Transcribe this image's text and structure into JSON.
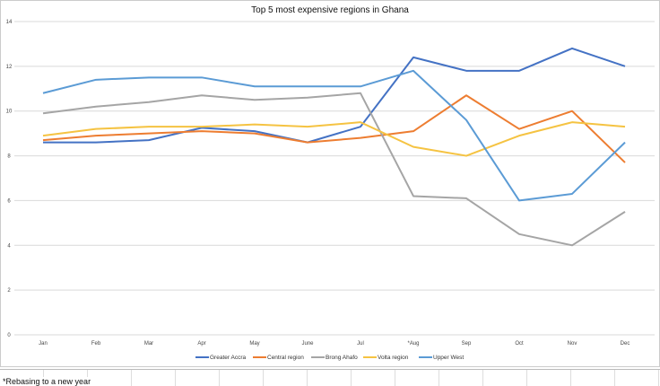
{
  "chart_data": {
    "type": "line",
    "title": "Top 5 most expensive regions in Ghana",
    "xlabel": "",
    "ylabel": "",
    "categories": [
      "Jan",
      "Feb",
      "Mar",
      "Apr",
      "May",
      "June",
      "Jul",
      "*Aug",
      "Sep",
      "Oct",
      "Nov",
      "Dec"
    ],
    "ylim": [
      0,
      14
    ],
    "yticks": [
      0,
      2,
      4,
      6,
      8,
      10,
      12,
      14
    ],
    "grid": true,
    "legend": "bottom",
    "series": [
      {
        "name": "Greater Accra",
        "color": "#4472C4",
        "values": [
          8.6,
          8.6,
          8.7,
          9.25,
          9.1,
          8.6,
          9.3,
          12.4,
          11.8,
          11.8,
          12.8,
          12.0
        ]
      },
      {
        "name": "Central region",
        "color": "#ED7D31",
        "values": [
          8.7,
          8.9,
          9.0,
          9.1,
          9.0,
          8.6,
          8.8,
          9.1,
          10.7,
          9.2,
          10.0,
          7.7
        ]
      },
      {
        "name": "Brong Ahafo",
        "color": "#A5A5A5",
        "values": [
          9.9,
          10.2,
          10.4,
          10.7,
          10.5,
          10.6,
          10.8,
          6.2,
          6.1,
          4.5,
          4.0,
          5.5
        ]
      },
      {
        "name": "Volta region",
        "color": "#F5C342",
        "values": [
          8.9,
          9.2,
          9.3,
          9.3,
          9.4,
          9.3,
          9.5,
          8.4,
          8.0,
          8.9,
          9.5,
          9.3
        ]
      },
      {
        "name": "Upper West",
        "color": "#5B9BD5",
        "values": [
          10.8,
          11.4,
          11.5,
          11.5,
          11.1,
          11.1,
          11.1,
          11.8,
          9.6,
          6.0,
          6.3,
          8.6
        ]
      }
    ]
  },
  "sheet": {
    "note": "*Rebasing to a new year"
  }
}
